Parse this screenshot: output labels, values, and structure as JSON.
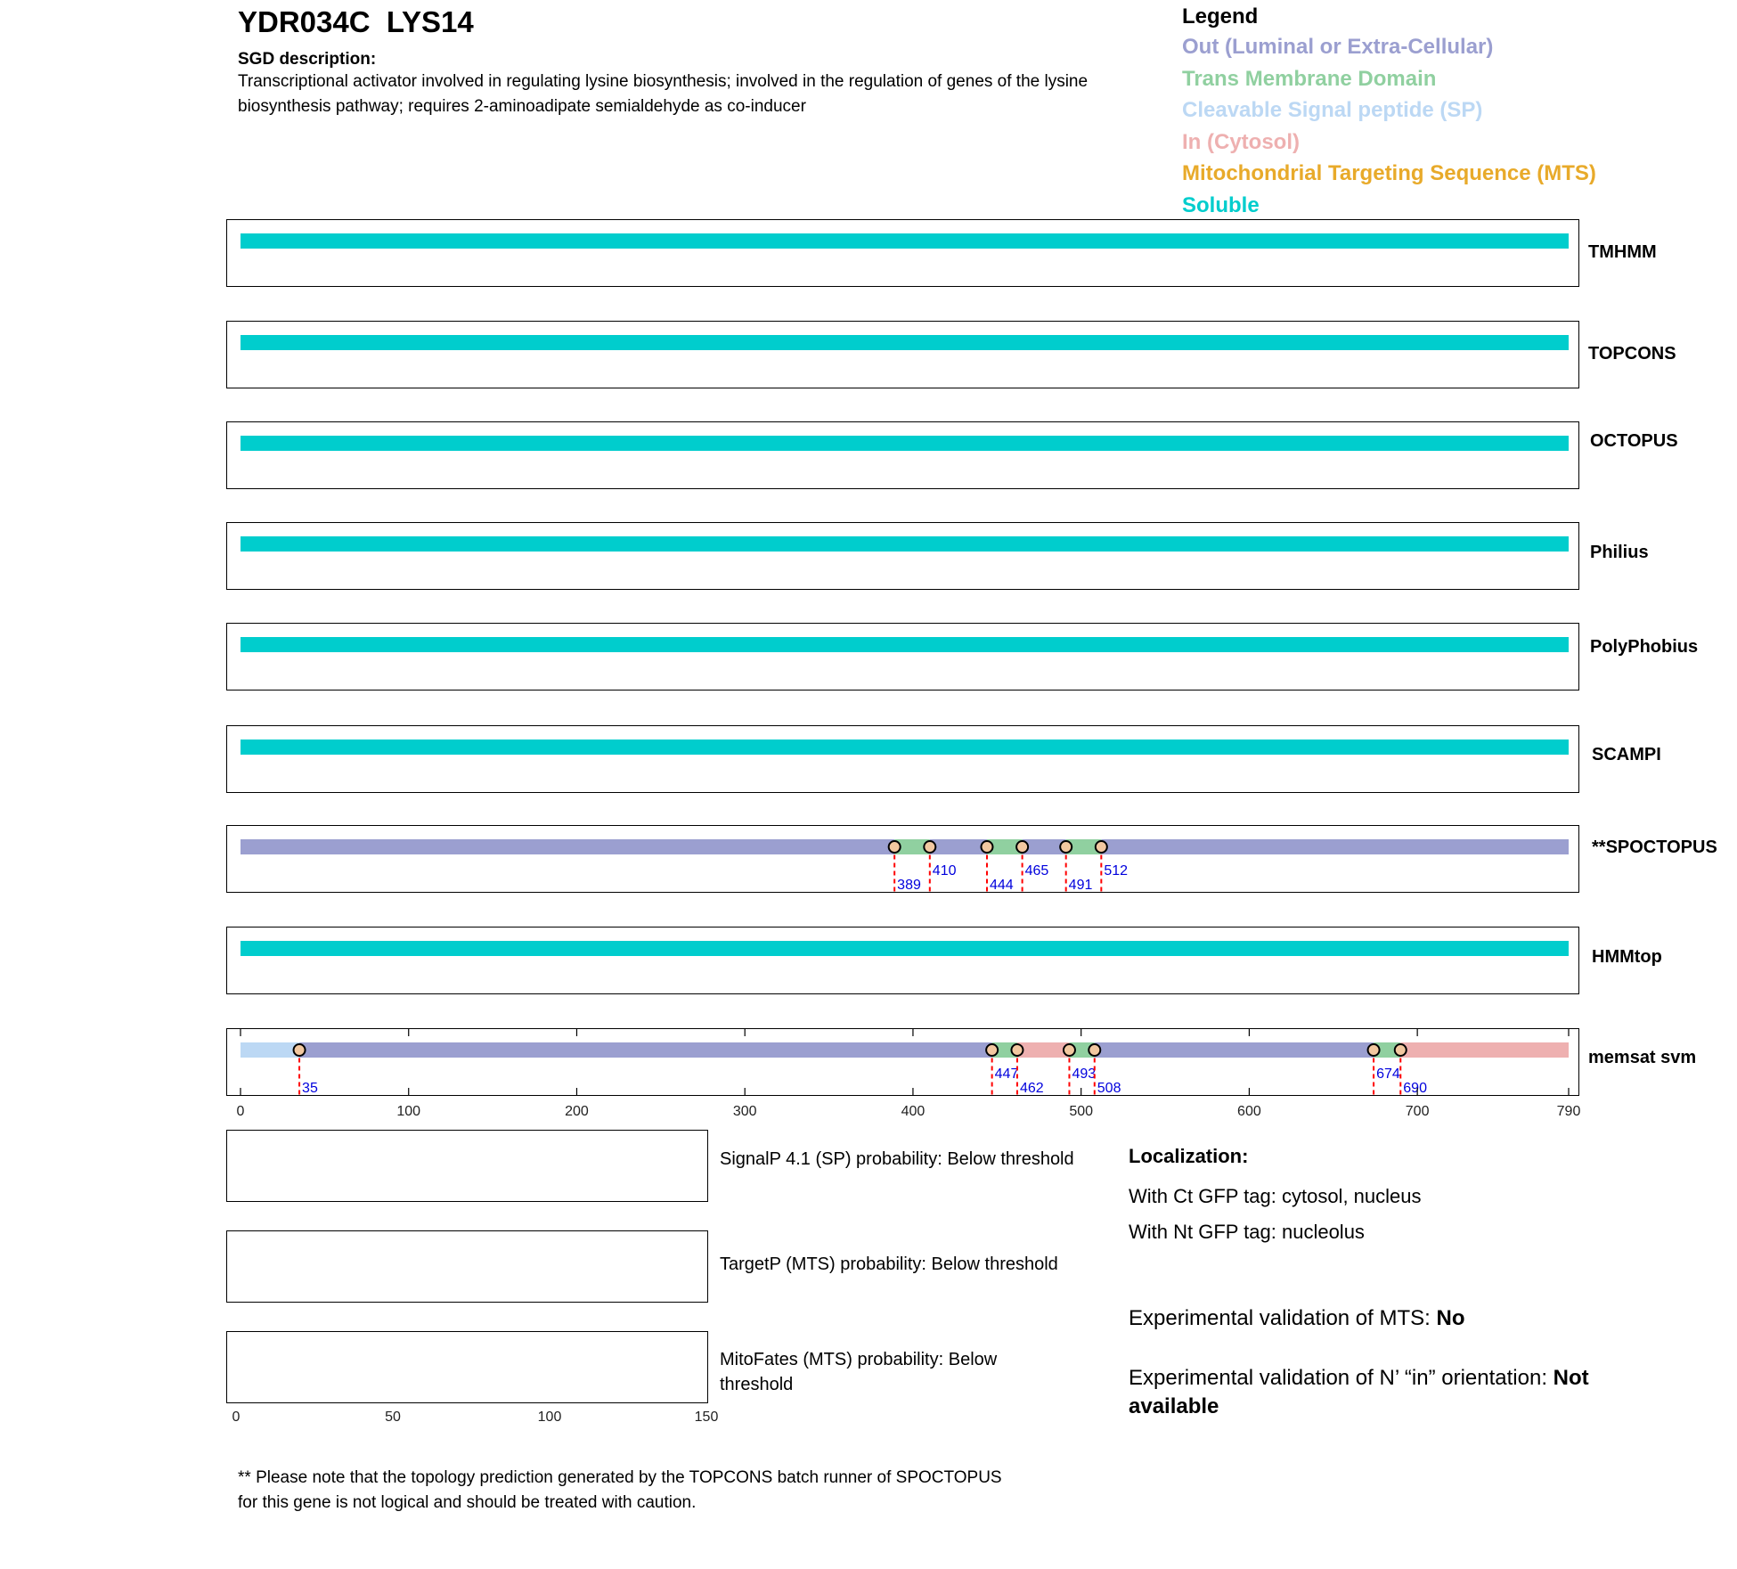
{
  "header": {
    "title": "YDR034C  LYS14",
    "description_heading": "SGD description:",
    "description": "Transcriptional activator involved in regulating lysine biosynthesis; involved in the regulation of genes of the lysine biosynthesis pathway; requires 2-aminoadipate semialdehyde as co-inducer"
  },
  "legend": {
    "title": "Legend",
    "items": [
      {
        "label": "Out (Luminal or Extra-Cellular)",
        "color": "#9b9fd0"
      },
      {
        "label": "Trans Membrane Domain",
        "color": "#90d0a0"
      },
      {
        "label": "Cleavable Signal peptide (SP)",
        "color": "#bcd8f4"
      },
      {
        "label": "In (Cytosol)",
        "color": "#eeb0b0"
      },
      {
        "label": "Mitochondrial Targeting Sequence (MTS)",
        "color": "#e8aa2a"
      },
      {
        "label": "Soluble",
        "color": "#00cdcd"
      }
    ]
  },
  "chart_data": {
    "type": "topology-tracks",
    "protein_length": 790,
    "x_ticks": [
      0,
      100,
      200,
      300,
      400,
      500,
      600,
      700,
      790
    ],
    "colors": {
      "out": "#9b9fd0",
      "tm": "#90d0a0",
      "sp": "#bcd8f4",
      "in": "#eeb0b0",
      "soluble": "#00cdcd"
    },
    "tracks": [
      {
        "name": "TMHMM",
        "segments": [
          {
            "start": 0,
            "end": 790,
            "type": "soluble"
          }
        ],
        "markers": []
      },
      {
        "name": "TOPCONS",
        "segments": [
          {
            "start": 0,
            "end": 790,
            "type": "soluble"
          }
        ],
        "markers": []
      },
      {
        "name": "OCTOPUS",
        "segments": [
          {
            "start": 0,
            "end": 790,
            "type": "soluble"
          }
        ],
        "markers": []
      },
      {
        "name": "Philius",
        "segments": [
          {
            "start": 0,
            "end": 790,
            "type": "soluble"
          }
        ],
        "markers": []
      },
      {
        "name": "PolyPhobius",
        "segments": [
          {
            "start": 0,
            "end": 790,
            "type": "soluble"
          }
        ],
        "markers": []
      },
      {
        "name": "SCAMPI",
        "segments": [
          {
            "start": 0,
            "end": 790,
            "type": "soluble"
          }
        ],
        "markers": []
      },
      {
        "name": "**SPOCTOPUS",
        "segments": [
          {
            "start": 0,
            "end": 389,
            "type": "out"
          },
          {
            "start": 389,
            "end": 410,
            "type": "tm"
          },
          {
            "start": 410,
            "end": 444,
            "type": "out"
          },
          {
            "start": 444,
            "end": 465,
            "type": "tm"
          },
          {
            "start": 465,
            "end": 491,
            "type": "out"
          },
          {
            "start": 491,
            "end": 512,
            "type": "tm"
          },
          {
            "start": 512,
            "end": 790,
            "type": "out"
          }
        ],
        "markers": [
          389,
          410,
          444,
          465,
          491,
          512
        ]
      },
      {
        "name": "HMMtop",
        "segments": [
          {
            "start": 0,
            "end": 790,
            "type": "soluble"
          }
        ],
        "markers": []
      },
      {
        "name": "memsat svm",
        "segments": [
          {
            "start": 0,
            "end": 35,
            "type": "sp"
          },
          {
            "start": 35,
            "end": 447,
            "type": "out"
          },
          {
            "start": 447,
            "end": 462,
            "type": "tm"
          },
          {
            "start": 462,
            "end": 493,
            "type": "in"
          },
          {
            "start": 493,
            "end": 508,
            "type": "tm"
          },
          {
            "start": 508,
            "end": 674,
            "type": "out"
          },
          {
            "start": 674,
            "end": 690,
            "type": "tm"
          },
          {
            "start": 690,
            "end": 790,
            "type": "in"
          }
        ],
        "markers": [
          35,
          447,
          462,
          493,
          508,
          674,
          690
        ]
      }
    ],
    "probability_ticks": [
      0,
      50,
      100,
      150
    ],
    "probability_max": 150
  },
  "probabilities": [
    {
      "label": "SignalP 4.1 (SP) probability: Below threshold"
    },
    {
      "label": "TargetP (MTS) probability: Below threshold"
    },
    {
      "label": "MitoFates (MTS) probability: Below threshold"
    }
  ],
  "localization": {
    "heading": "Localization:",
    "ct": "With Ct GFP tag: cytosol, nucleus",
    "nt": "With Nt GFP tag: nucleolus"
  },
  "validation": {
    "mts_label": "Experimental validation of MTS: ",
    "mts_value": "No",
    "orientation_label": "Experimental validation of N’ “in” orientation: ",
    "orientation_value": "Not available"
  },
  "footnote": "** Please note that the topology prediction generated by the TOPCONS batch runner of SPOCTOPUS for this gene is not logical and should be treated with caution."
}
